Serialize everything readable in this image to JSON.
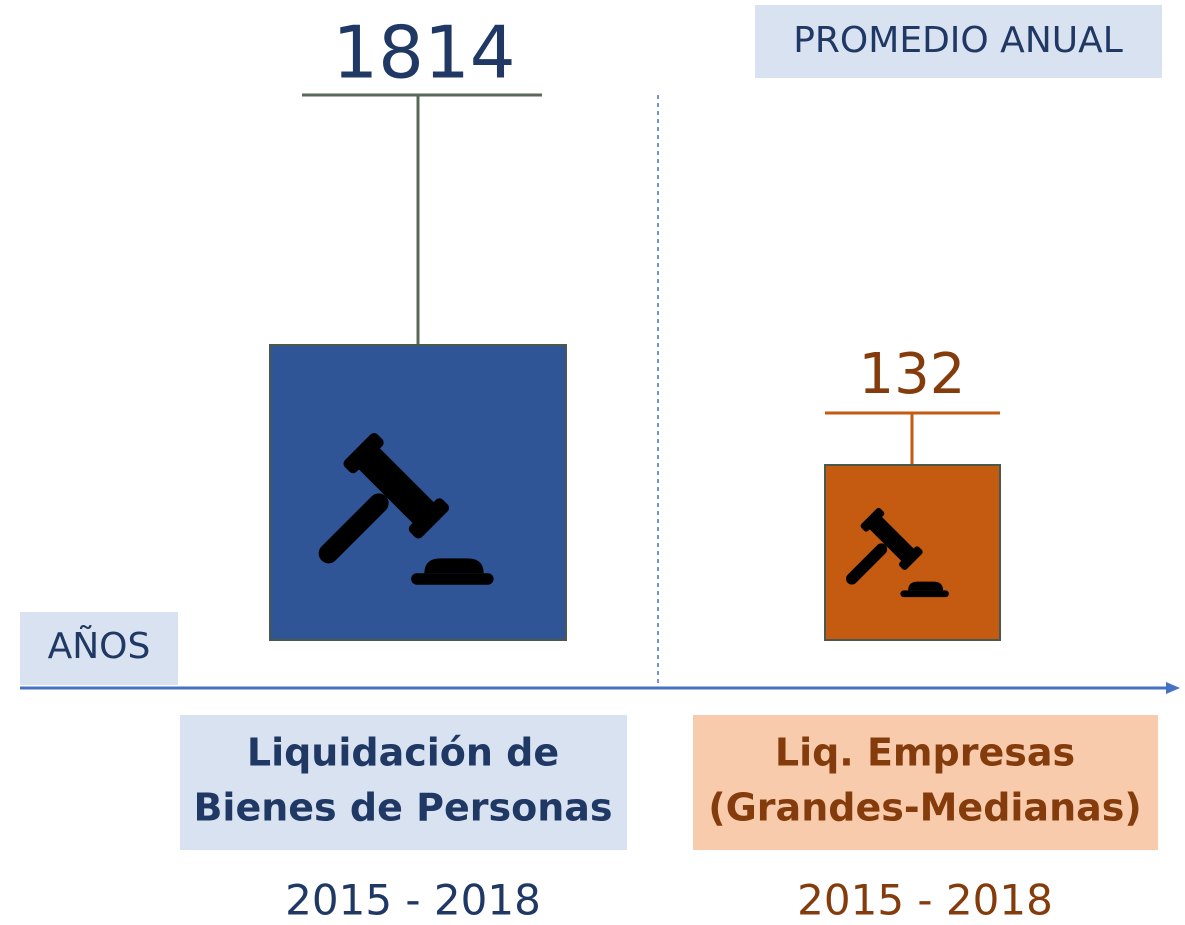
{
  "badge": "PROMEDIO ANUAL",
  "axis_label": "AÑOS",
  "items": [
    {
      "value": "1814",
      "label_lines": [
        "Liquidación de",
        "Bienes de Personas"
      ],
      "period": "2015 - 2018"
    },
    {
      "value": "132",
      "label_lines": [
        "Liq. Empresas",
        "(Grandes-Medianas)"
      ],
      "period": "2015 - 2018"
    }
  ]
}
